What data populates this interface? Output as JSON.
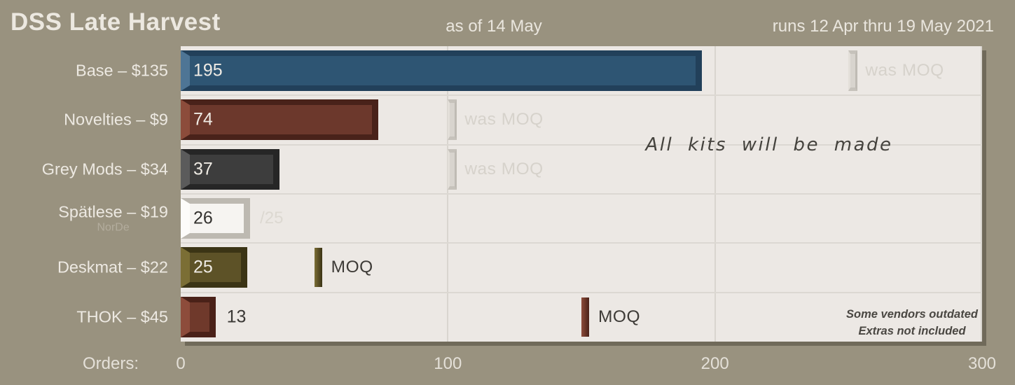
{
  "header": {
    "title": "DSS Late Harvest",
    "as_of": "as of 14 May",
    "runs": "runs 12 Apr thru 19 May 2021"
  },
  "annotation": "All kits will be made",
  "footnote": [
    "Some vendors outdated",
    "Extras not included"
  ],
  "axis": {
    "label": "Orders:",
    "ticks": [
      0,
      100,
      200,
      300
    ],
    "max": 300
  },
  "colors": {
    "background": "#99927F",
    "plot_background": "#ECE8E4",
    "gridline": "#D9D5CF",
    "ghost_marker": "#D8D4CE",
    "ghost_text": "#D6D2CB",
    "dark_text": "#3E3B37"
  },
  "chart_data": {
    "type": "bar",
    "orientation": "horizontal",
    "title": "DSS Late Harvest",
    "xlabel": "Orders",
    "xlim": [
      0,
      300
    ],
    "grid": true,
    "categories": [
      "Base – $135",
      "Novelties – $9",
      "Grey Mods – $34",
      "Spätlese – $19",
      "Deskmat – $22",
      "THOK – $45"
    ],
    "values": [
      195,
      74,
      37,
      26,
      25,
      13
    ],
    "rows": [
      {
        "label": "Base – $135",
        "value": 195,
        "value_inside": true,
        "value_color": "#EFEBE4",
        "colors": {
          "face": "#2E5573",
          "light": "#4E7595",
          "dark": "#22405A"
        },
        "marker": {
          "value": 250,
          "label": "was MOQ",
          "style": "ghost",
          "label_color": "#D6D2CB"
        }
      },
      {
        "label": "Novelties – $9",
        "value": 74,
        "value_inside": true,
        "value_color": "#EFEBE4",
        "colors": {
          "face": "#6C382C",
          "light": "#8C4C3B",
          "dark": "#49221A"
        },
        "marker": {
          "value": 100,
          "label": "was MOQ",
          "style": "ghost",
          "label_color": "#D6D2CB"
        }
      },
      {
        "label": "Grey Mods – $34",
        "value": 37,
        "value_inside": true,
        "value_color": "#EFEBE4",
        "colors": {
          "face": "#3D3D3D",
          "light": "#5B5B5B",
          "dark": "#262626"
        },
        "marker": {
          "value": 100,
          "label": "was MOQ",
          "style": "ghost",
          "label_color": "#D6D2CB"
        }
      },
      {
        "label": "Spätlese – $19",
        "sublabel": "NorDe",
        "value": 26,
        "value_inside": true,
        "value_color": "#34322F",
        "suffix": "/25",
        "colors": {
          "face": "#F6F4F1",
          "light": "#FDFCFA",
          "dark": "#BDB9B1"
        },
        "marker": null
      },
      {
        "label": "Deskmat – $22",
        "value": 25,
        "value_inside": true,
        "value_color": "#EFEBE4",
        "colors": {
          "face": "#5D5227",
          "light": "#7B6E35",
          "dark": "#3B3415"
        },
        "marker": {
          "value": 50,
          "label": "MOQ",
          "style": "solid",
          "label_color": "#3E3B37"
        }
      },
      {
        "label": "THOK – $45",
        "value": 13,
        "value_inside": false,
        "value_color": "#3A3835",
        "colors": {
          "face": "#6F392B",
          "light": "#8D4C3B",
          "dark": "#4A2118"
        },
        "marker": {
          "value": 150,
          "label": "MOQ",
          "style": "solid",
          "label_color": "#3E3B37"
        }
      }
    ]
  }
}
